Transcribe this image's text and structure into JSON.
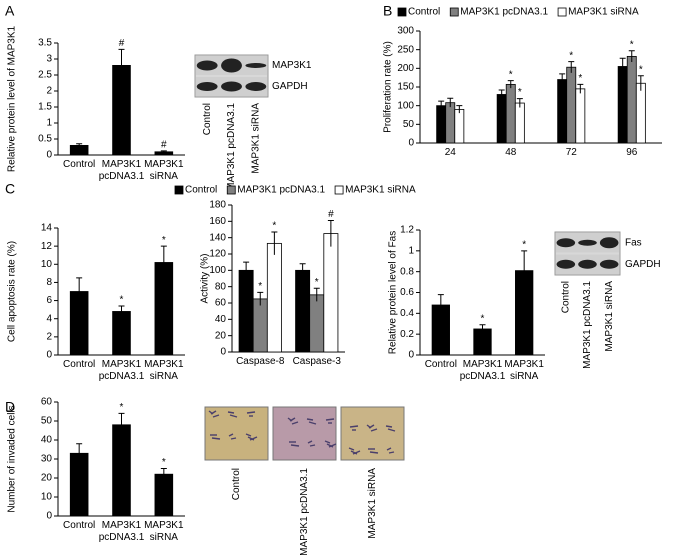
{
  "chart_data": [
    {
      "type": "bar",
      "panel": "A",
      "ylabel": "Relative protein level of MAP3K1",
      "categories": [
        "Control",
        "MAP3K1 pcDNA3.1",
        "MAP3K1 siRNA"
      ],
      "values": [
        0.3,
        2.8,
        0.1
      ],
      "errors": [
        0.05,
        0.5,
        0.03
      ],
      "markers": [
        null,
        "#",
        "#"
      ],
      "color": "#000000",
      "ylim": [
        0,
        3.5
      ],
      "yticks": [
        0,
        0.5,
        1,
        1.5,
        2,
        2.5,
        3,
        3.5
      ],
      "blot": {
        "rows": [
          "MAP3K1",
          "GAPDH"
        ],
        "lanes": [
          "Control",
          "MAP3K1 pcDNA3.1",
          "MAP3K1 siRNA"
        ]
      }
    },
    {
      "type": "bar",
      "panel": "B",
      "ylabel": "Proliferation rate (%)",
      "legend": "top",
      "categories": [
        "24",
        "48",
        "72",
        "96"
      ],
      "series": [
        {
          "name": "Control",
          "color": "#000000",
          "values": [
            100,
            130,
            170,
            205
          ],
          "errors": [
            12,
            12,
            15,
            22
          ],
          "markers": [
            null,
            null,
            null,
            null
          ]
        },
        {
          "name": "MAP3K1 pcDNA3.1",
          "color": "#808080",
          "values": [
            108,
            157,
            203,
            232
          ],
          "errors": [
            12,
            10,
            15,
            15
          ],
          "markers": [
            null,
            "*",
            "*",
            "*"
          ]
        },
        {
          "name": "MAP3K1 siRNA",
          "color": "#ffffff",
          "values": [
            90,
            107,
            145,
            160
          ],
          "errors": [
            10,
            12,
            12,
            20
          ],
          "markers": [
            null,
            "*",
            "*",
            "*"
          ]
        }
      ],
      "ylim": [
        0,
        300
      ],
      "yticks": [
        0,
        50,
        100,
        150,
        200,
        250,
        300
      ]
    },
    {
      "type": "bar",
      "panel": "C",
      "ylabel": "Cell apoptosis rate (%)",
      "categories": [
        "Control",
        "MAP3K1 pcDNA3.1",
        "MAP3K1 siRNA"
      ],
      "values": [
        7,
        4.8,
        10.2
      ],
      "errors": [
        1.5,
        0.6,
        1.8
      ],
      "markers": [
        null,
        "*",
        "*"
      ],
      "color": "#000000",
      "ylim": [
        0,
        14
      ],
      "yticks": [
        0,
        2,
        4,
        6,
        8,
        10,
        12,
        14
      ]
    },
    {
      "type": "bar",
      "ylabel": "Activity (%)",
      "legend": "top",
      "categories": [
        "Caspase-8",
        "Caspase-3"
      ],
      "series": [
        {
          "name": "Control",
          "color": "#000000",
          "values": [
            100,
            100
          ],
          "errors": [
            10,
            8
          ],
          "markers": [
            null,
            null
          ]
        },
        {
          "name": "MAP3K1 pcDNA3.1",
          "color": "#808080",
          "values": [
            65,
            70
          ],
          "errors": [
            8,
            8
          ],
          "markers": [
            "*",
            "*"
          ]
        },
        {
          "name": "MAP3K1 siRNA",
          "color": "#ffffff",
          "values": [
            133,
            145
          ],
          "errors": [
            14,
            16
          ],
          "markers": [
            "*",
            "#"
          ]
        }
      ],
      "ylim": [
        0,
        180
      ],
      "yticks": [
        0,
        20,
        40,
        60,
        80,
        100,
        120,
        140,
        160,
        180
      ]
    },
    {
      "type": "bar",
      "ylabel": "Relative protein level of Fas",
      "categories": [
        "Control",
        "MAP3K1 pcDNA3.1",
        "MAP3K1 siRNA"
      ],
      "values": [
        0.48,
        0.25,
        0.81
      ],
      "errors": [
        0.1,
        0.04,
        0.19
      ],
      "markers": [
        null,
        "*",
        "*"
      ],
      "color": "#000000",
      "ylim": [
        0,
        1.2
      ],
      "yticks": [
        0,
        0.2,
        0.4,
        0.6,
        0.8,
        1,
        1.2
      ],
      "blot": {
        "rows": [
          "Fas",
          "GAPDH"
        ],
        "lanes": [
          "Control",
          "MAP3K1 pcDNA3.1",
          "MAP3K1 siRNA"
        ]
      }
    },
    {
      "type": "bar",
      "panel": "D",
      "ylabel": "Number of invaded cells",
      "categories": [
        "Control",
        "MAP3K1 pcDNA3.1",
        "MAP3K1 siRNA"
      ],
      "values": [
        33,
        48,
        22
      ],
      "errors": [
        5,
        6,
        3
      ],
      "markers": [
        null,
        "*",
        "*"
      ],
      "color": "#000000",
      "ylim": [
        0,
        60
      ],
      "yticks": [
        0,
        10,
        20,
        30,
        40,
        50,
        60
      ],
      "images": {
        "lanes": [
          "Control",
          "MAP3K1 pcDNA3.1",
          "MAP3K1 siRNA"
        ]
      }
    }
  ]
}
